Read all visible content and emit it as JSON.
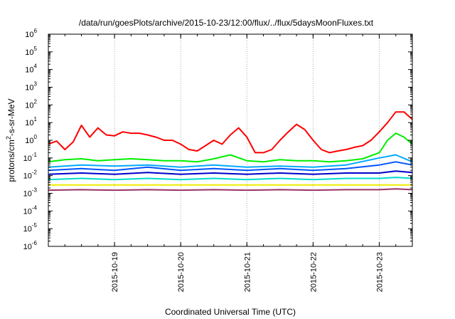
{
  "chart_data": {
    "type": "line",
    "title": "/data/run/goesPlots/archive/2015-10-23/12:00/flux/../flux/5daysMoonFluxes.txt",
    "xlabel": "Coordinated Universal Time (UTC)",
    "ylabel": "protons/cm²-s-sr-MeV",
    "ylabel_parts": {
      "pre": "protons/cm",
      "sup": "2",
      "post": "-s-sr-MeV"
    },
    "xlim": [
      "2015-10-18T00:00",
      "2015-10-23T12:00"
    ],
    "ylim": [
      1e-06,
      1000000.0
    ],
    "yscale": "log",
    "grid": true,
    "x_tick_labels": [
      "2015-10-19",
      "2015-10-20",
      "2015-10-21",
      "2015-10-22",
      "2015-10-23"
    ],
    "y_tick_labels": [
      {
        "base": "10",
        "exp": "-6"
      },
      {
        "base": "10",
        "exp": "-5"
      },
      {
        "base": "10",
        "exp": "-4"
      },
      {
        "base": "10",
        "exp": "-3"
      },
      {
        "base": "10",
        "exp": "-2"
      },
      {
        "base": "10",
        "exp": "-1"
      },
      {
        "base": "10",
        "exp": "0"
      },
      {
        "base": "10",
        "exp": "1"
      },
      {
        "base": "10",
        "exp": "2"
      },
      {
        "base": "10",
        "exp": "3"
      },
      {
        "base": "10",
        "exp": "4"
      },
      {
        "base": "10",
        "exp": "5"
      },
      {
        "base": "10",
        "exp": "6"
      }
    ],
    "series": [
      {
        "color": "#ff0000",
        "x": [
          "2015-10-18T00:00",
          "2015-10-18T03:00",
          "2015-10-18T06:00",
          "2015-10-18T09:00",
          "2015-10-18T12:00",
          "2015-10-18T15:00",
          "2015-10-18T18:00",
          "2015-10-18T21:00",
          "2015-10-19T00:00",
          "2015-10-19T03:00",
          "2015-10-19T06:00",
          "2015-10-19T09:00",
          "2015-10-19T12:00",
          "2015-10-19T15:00",
          "2015-10-19T18:00",
          "2015-10-19T21:00",
          "2015-10-20T00:00",
          "2015-10-20T03:00",
          "2015-10-20T06:00",
          "2015-10-20T09:00",
          "2015-10-20T12:00",
          "2015-10-20T15:00",
          "2015-10-20T18:00",
          "2015-10-20T21:00",
          "2015-10-21T00:00",
          "2015-10-21T03:00",
          "2015-10-21T06:00",
          "2015-10-21T09:00",
          "2015-10-21T12:00",
          "2015-10-21T15:00",
          "2015-10-21T18:00",
          "2015-10-21T21:00",
          "2015-10-22T00:00",
          "2015-10-22T03:00",
          "2015-10-22T06:00",
          "2015-10-22T09:00",
          "2015-10-22T12:00",
          "2015-10-22T15:00",
          "2015-10-22T18:00",
          "2015-10-22T21:00",
          "2015-10-23T00:00",
          "2015-10-23T03:00",
          "2015-10-23T06:00",
          "2015-10-23T09:00",
          "2015-10-23T12:00"
        ],
        "y": [
          0.6,
          0.9,
          0.3,
          0.8,
          7,
          1.5,
          5,
          2,
          1.8,
          3,
          2.5,
          2.5,
          2,
          1.5,
          1,
          1,
          0.6,
          0.3,
          0.25,
          0.5,
          1,
          0.6,
          2,
          5,
          1.5,
          0.2,
          0.2,
          0.3,
          1,
          3,
          8,
          4,
          1,
          0.3,
          0.2,
          0.25,
          0.3,
          0.4,
          0.5,
          1,
          3,
          10,
          40,
          40,
          15
        ]
      },
      {
        "color": "#00ee00",
        "x": [
          "2015-10-18T00:00",
          "2015-10-18T06:00",
          "2015-10-18T12:00",
          "2015-10-18T18:00",
          "2015-10-19T00:00",
          "2015-10-19T06:00",
          "2015-10-19T12:00",
          "2015-10-19T18:00",
          "2015-10-20T00:00",
          "2015-10-20T06:00",
          "2015-10-20T12:00",
          "2015-10-20T18:00",
          "2015-10-21T00:00",
          "2015-10-21T06:00",
          "2015-10-21T12:00",
          "2015-10-21T18:00",
          "2015-10-22T00:00",
          "2015-10-22T06:00",
          "2015-10-22T12:00",
          "2015-10-22T18:00",
          "2015-10-23T00:00",
          "2015-10-23T03:00",
          "2015-10-23T06:00",
          "2015-10-23T09:00",
          "2015-10-23T12:00"
        ],
        "y": [
          0.06,
          0.08,
          0.09,
          0.07,
          0.08,
          0.09,
          0.08,
          0.07,
          0.07,
          0.06,
          0.09,
          0.15,
          0.07,
          0.06,
          0.08,
          0.07,
          0.07,
          0.06,
          0.07,
          0.09,
          0.2,
          1,
          2.5,
          1.5,
          0.6
        ]
      },
      {
        "color": "#00aaff",
        "x": [
          "2015-10-18T00:00",
          "2015-10-18T12:00",
          "2015-10-19T00:00",
          "2015-10-19T12:00",
          "2015-10-20T00:00",
          "2015-10-20T12:00",
          "2015-10-21T00:00",
          "2015-10-21T12:00",
          "2015-10-22T00:00",
          "2015-10-22T12:00",
          "2015-10-23T00:00",
          "2015-10-23T06:00",
          "2015-10-23T12:00"
        ],
        "y": [
          0.03,
          0.04,
          0.035,
          0.04,
          0.03,
          0.04,
          0.03,
          0.035,
          0.03,
          0.04,
          0.1,
          0.15,
          0.06
        ]
      },
      {
        "color": "#0055ff",
        "x": [
          "2015-10-18T00:00",
          "2015-10-18T12:00",
          "2015-10-19T00:00",
          "2015-10-19T12:00",
          "2015-10-20T00:00",
          "2015-10-20T12:00",
          "2015-10-21T00:00",
          "2015-10-21T12:00",
          "2015-10-22T00:00",
          "2015-10-22T12:00",
          "2015-10-23T00:00",
          "2015-10-23T06:00",
          "2015-10-23T12:00"
        ],
        "y": [
          0.02,
          0.025,
          0.02,
          0.03,
          0.02,
          0.025,
          0.02,
          0.025,
          0.02,
          0.025,
          0.04,
          0.06,
          0.04
        ]
      },
      {
        "color": "#0000cc",
        "x": [
          "2015-10-18T00:00",
          "2015-10-18T12:00",
          "2015-10-19T00:00",
          "2015-10-19T12:00",
          "2015-10-20T00:00",
          "2015-10-20T12:00",
          "2015-10-21T00:00",
          "2015-10-21T12:00",
          "2015-10-22T00:00",
          "2015-10-22T12:00",
          "2015-10-23T00:00",
          "2015-10-23T06:00",
          "2015-10-23T12:00"
        ],
        "y": [
          0.012,
          0.014,
          0.012,
          0.015,
          0.012,
          0.014,
          0.012,
          0.014,
          0.012,
          0.014,
          0.014,
          0.018,
          0.015
        ]
      },
      {
        "color": "#00ddcc",
        "x": [
          "2015-10-18T00:00",
          "2015-10-18T12:00",
          "2015-10-19T00:00",
          "2015-10-19T12:00",
          "2015-10-20T00:00",
          "2015-10-20T12:00",
          "2015-10-21T00:00",
          "2015-10-21T12:00",
          "2015-10-22T00:00",
          "2015-10-22T12:00",
          "2015-10-23T00:00",
          "2015-10-23T06:00",
          "2015-10-23T12:00"
        ],
        "y": [
          0.006,
          0.007,
          0.006,
          0.007,
          0.006,
          0.007,
          0.006,
          0.007,
          0.006,
          0.007,
          0.007,
          0.008,
          0.007
        ]
      },
      {
        "color": "#eeee00",
        "x": [
          "2015-10-18T00:00",
          "2015-10-19T00:00",
          "2015-10-20T00:00",
          "2015-10-21T00:00",
          "2015-10-22T00:00",
          "2015-10-23T00:00",
          "2015-10-23T12:00"
        ],
        "y": [
          0.003,
          0.003,
          0.003,
          0.003,
          0.003,
          0.003,
          0.003
        ]
      },
      {
        "color": "#993366",
        "x": [
          "2015-10-18T00:00",
          "2015-10-18T12:00",
          "2015-10-19T00:00",
          "2015-10-19T12:00",
          "2015-10-20T00:00",
          "2015-10-20T12:00",
          "2015-10-21T00:00",
          "2015-10-21T12:00",
          "2015-10-22T00:00",
          "2015-10-22T12:00",
          "2015-10-23T00:00",
          "2015-10-23T06:00",
          "2015-10-23T12:00"
        ],
        "y": [
          0.0015,
          0.0016,
          0.0015,
          0.0016,
          0.0015,
          0.0016,
          0.0015,
          0.0016,
          0.0015,
          0.0016,
          0.0016,
          0.0018,
          0.0016
        ]
      }
    ]
  }
}
